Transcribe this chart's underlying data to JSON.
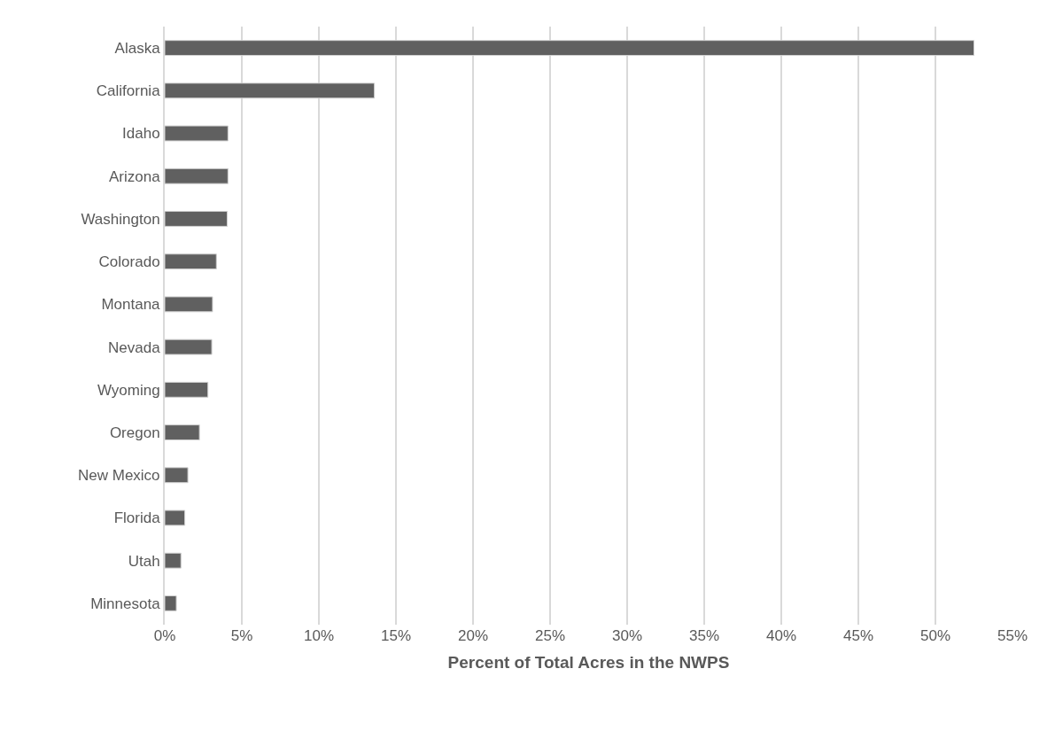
{
  "chart_data": {
    "type": "bar",
    "orientation": "horizontal",
    "xlabel": "Percent of Total Acres in the NWPS",
    "categories": [
      "Alaska",
      "California",
      "Idaho",
      "Arizona",
      "Washington",
      "Colorado",
      "Montana",
      "Nevada",
      "Wyoming",
      "Oregon",
      "New Mexico",
      "Florida",
      "Utah",
      "Minnesota"
    ],
    "values": [
      52.5,
      13.6,
      4.1,
      4.1,
      4.05,
      3.35,
      3.1,
      3.05,
      2.8,
      2.25,
      1.5,
      1.3,
      1.05,
      0.75
    ],
    "color": "#606060",
    "xlim": [
      0,
      55
    ],
    "xticks": [
      {
        "value": 0,
        "label": "0%"
      },
      {
        "value": 5,
        "label": "5%"
      },
      {
        "value": 10,
        "label": "10%"
      },
      {
        "value": 15,
        "label": "15%"
      },
      {
        "value": 20,
        "label": "20%"
      },
      {
        "value": 25,
        "label": "25%"
      },
      {
        "value": 30,
        "label": "30%"
      },
      {
        "value": 35,
        "label": "35%"
      },
      {
        "value": 40,
        "label": "40%"
      },
      {
        "value": 45,
        "label": "45%"
      },
      {
        "value": 50,
        "label": "50%"
      },
      {
        "value": 55,
        "label": "55%"
      }
    ],
    "grid": "x"
  }
}
